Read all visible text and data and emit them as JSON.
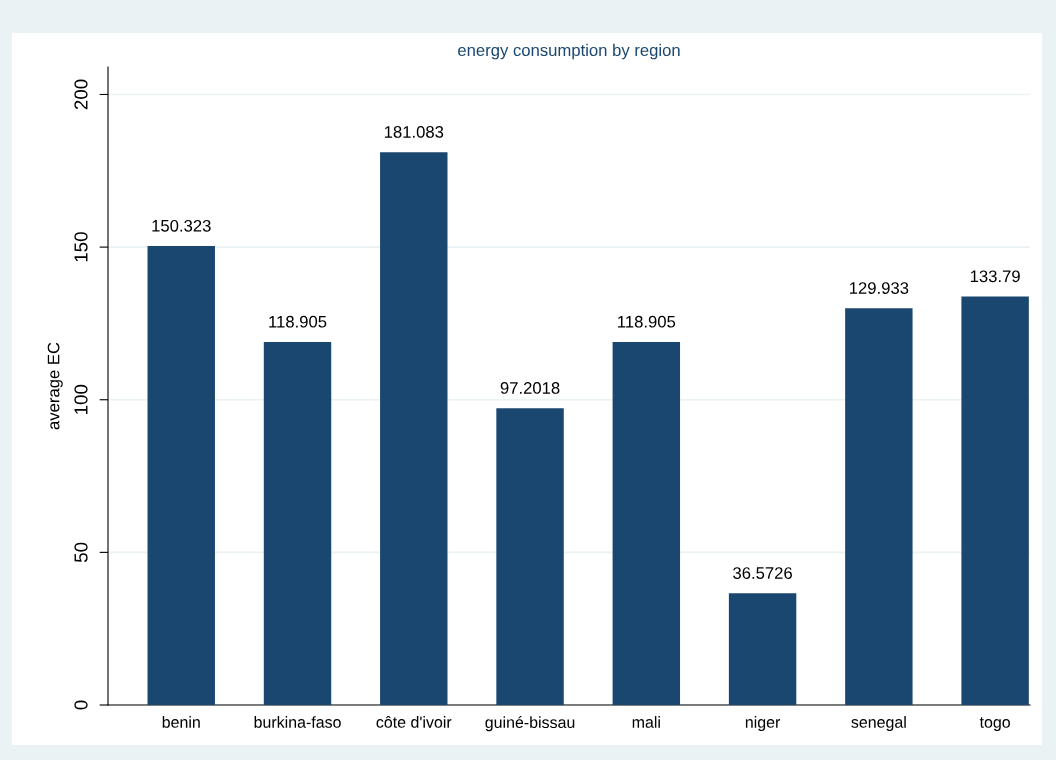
{
  "chart_data": {
    "type": "bar",
    "title": "energy consumption by region",
    "ylabel": "average EC",
    "categories": [
      "benin",
      "burkina-faso",
      "côte d'ivoir",
      "guiné-bissau",
      "mali",
      "niger",
      "senegal",
      "togo"
    ],
    "values": [
      150.323,
      118.905,
      181.083,
      97.2018,
      118.905,
      36.5726,
      129.933,
      133.79
    ],
    "color": "#1a476f",
    "data_labels": true,
    "ylim": [
      0,
      209
    ],
    "yticks": [
      0,
      50,
      100,
      150,
      200
    ],
    "grid": "y"
  }
}
